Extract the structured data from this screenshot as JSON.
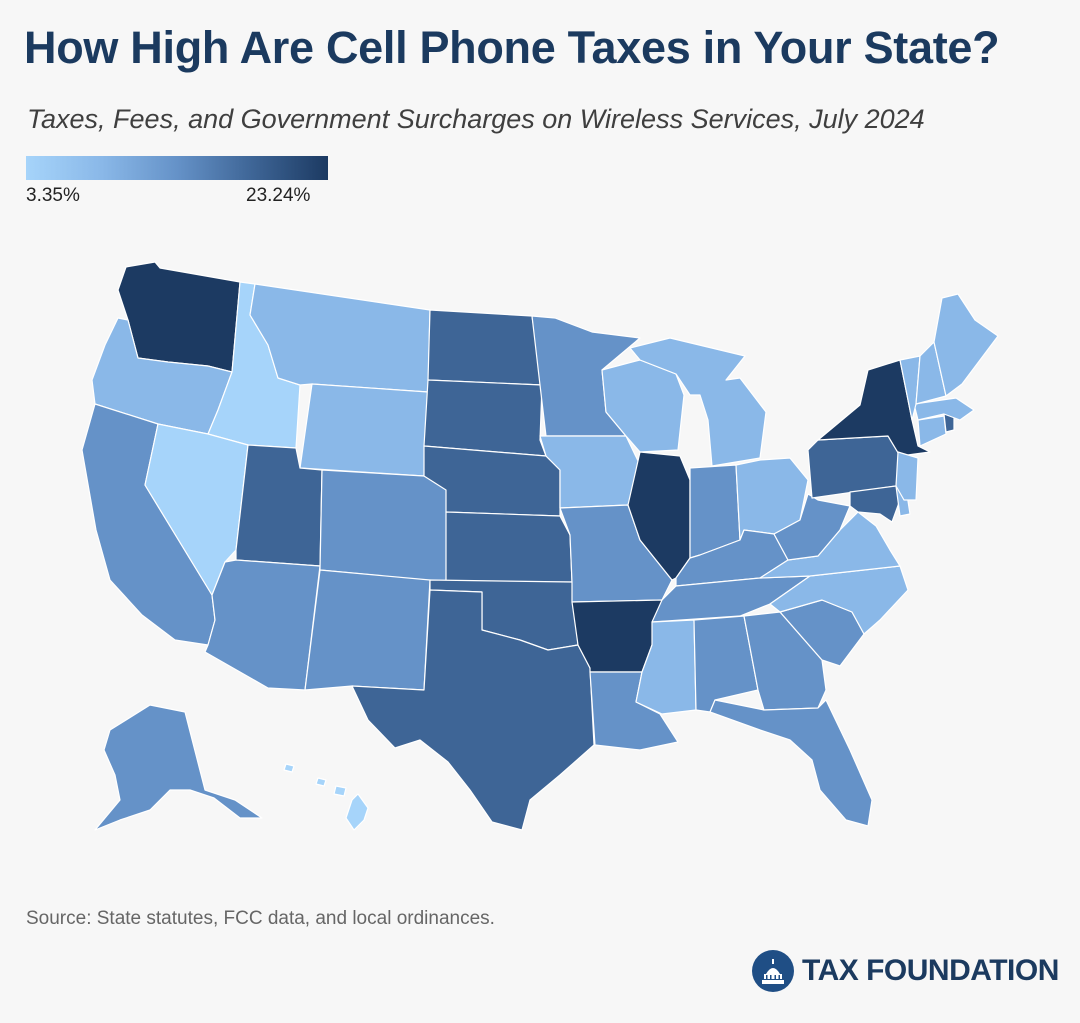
{
  "title": "How High Are Cell Phone Taxes in Your State?",
  "subtitle": "Taxes, Fees, and Government Surcharges on Wireless Services, July 2024",
  "legend": {
    "min_label": "3.35%",
    "max_label": "23.24%",
    "min_color": "#a6d4fa",
    "max_color": "#1c3a62"
  },
  "source": "Source: State statutes, FCC data, and local ordinances.",
  "brand": "TAX FOUNDATION",
  "colors": {
    "background": "#f7f7f7",
    "title": "#1b3a5f",
    "level1": "#a6d4fa",
    "level2": "#8ab8e8",
    "level3": "#6592c8",
    "level4": "#3e6596",
    "level5": "#1c3a62"
  },
  "states": [
    {
      "id": "WA",
      "level": 5
    },
    {
      "id": "OR",
      "level": 2
    },
    {
      "id": "CA",
      "level": 3
    },
    {
      "id": "ID",
      "level": 1
    },
    {
      "id": "NV",
      "level": 1
    },
    {
      "id": "MT",
      "level": 2
    },
    {
      "id": "WY",
      "level": 2
    },
    {
      "id": "UT",
      "level": 4
    },
    {
      "id": "AZ",
      "level": 3
    },
    {
      "id": "CO",
      "level": 3
    },
    {
      "id": "NM",
      "level": 3
    },
    {
      "id": "ND",
      "level": 4
    },
    {
      "id": "SD",
      "level": 4
    },
    {
      "id": "NE",
      "level": 4
    },
    {
      "id": "KS",
      "level": 4
    },
    {
      "id": "OK",
      "level": 4
    },
    {
      "id": "TX",
      "level": 4
    },
    {
      "id": "MN",
      "level": 3
    },
    {
      "id": "IA",
      "level": 2
    },
    {
      "id": "MO",
      "level": 3
    },
    {
      "id": "AR",
      "level": 5
    },
    {
      "id": "LA",
      "level": 3
    },
    {
      "id": "WI",
      "level": 2
    },
    {
      "id": "IL",
      "level": 5
    },
    {
      "id": "MI",
      "level": 2
    },
    {
      "id": "IN",
      "level": 3
    },
    {
      "id": "OH",
      "level": 2
    },
    {
      "id": "KY",
      "level": 3
    },
    {
      "id": "TN",
      "level": 3
    },
    {
      "id": "MS",
      "level": 2
    },
    {
      "id": "AL",
      "level": 3
    },
    {
      "id": "GA",
      "level": 3
    },
    {
      "id": "FL",
      "level": 3
    },
    {
      "id": "SC",
      "level": 3
    },
    {
      "id": "NC",
      "level": 2
    },
    {
      "id": "VA",
      "level": 2
    },
    {
      "id": "WV",
      "level": 3
    },
    {
      "id": "PA",
      "level": 4
    },
    {
      "id": "NY",
      "level": 5
    },
    {
      "id": "MD",
      "level": 4
    },
    {
      "id": "DE",
      "level": 2
    },
    {
      "id": "NJ",
      "level": 2
    },
    {
      "id": "CT",
      "level": 2
    },
    {
      "id": "RI",
      "level": 4
    },
    {
      "id": "MA",
      "level": 2
    },
    {
      "id": "VT",
      "level": 2
    },
    {
      "id": "NH",
      "level": 2
    },
    {
      "id": "ME",
      "level": 2
    },
    {
      "id": "AK",
      "level": 3
    },
    {
      "id": "HI",
      "level": 1
    }
  ]
}
